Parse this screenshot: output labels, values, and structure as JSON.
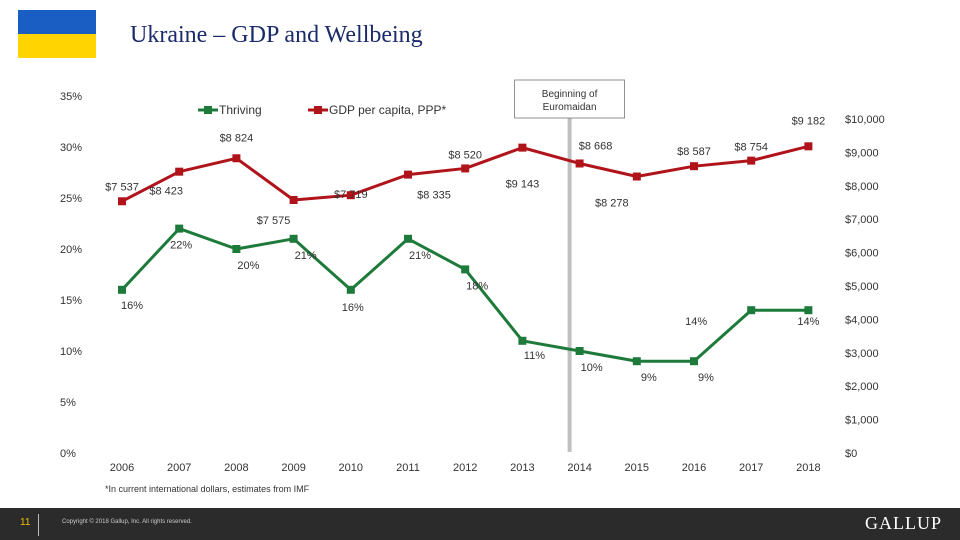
{
  "header": {
    "title": "Ukraine – GDP and Wellbeing",
    "flag": {
      "top_color": "#1a5ec4",
      "bottom_color": "#ffd400"
    }
  },
  "chart_data": {
    "type": "line",
    "x": [
      "2006",
      "2007",
      "2008",
      "2009",
      "2010",
      "2011",
      "2012",
      "2013",
      "2014",
      "2015",
      "2016",
      "2017",
      "2018"
    ],
    "series": [
      {
        "name": "Thriving",
        "axis": "left",
        "color": "#1e7a3a",
        "marker": "square",
        "values": [
          16,
          22,
          20,
          21,
          16,
          21,
          18,
          11,
          10,
          9,
          9,
          14,
          14
        ],
        "labels": [
          "16%",
          "22%",
          "20%",
          "21%",
          "16%",
          "21%",
          "18%",
          "11%",
          "10%",
          "9%",
          "9%",
          "14%",
          "14%"
        ]
      },
      {
        "name": "GDP per capita, PPP*",
        "axis": "right",
        "color": "#b0141a",
        "marker": "square",
        "values": [
          7537,
          8423,
          8824,
          7575,
          7719,
          8335,
          8520,
          9143,
          8668,
          8278,
          8587,
          8754,
          9182
        ],
        "labels": [
          "$7 537",
          "$8 423",
          "$8 824",
          "$7 575",
          "$7 719",
          "$8 335",
          "$8 520",
          "$9 143",
          "$8 668",
          "$8 278",
          "$8 587",
          "$8 754",
          "$9 182"
        ]
      }
    ],
    "y_left": {
      "range": [
        0,
        35
      ],
      "ticks": [
        "0%",
        "5%",
        "10%",
        "15%",
        "20%",
        "25%",
        "30%",
        "35%"
      ]
    },
    "y_right": {
      "range": [
        0,
        10500
      ],
      "ticks": [
        "$0",
        "$1,000",
        "$2,000",
        "$3,000",
        "$4,000",
        "$5,000",
        "$6,000",
        "$7,000",
        "$8,000",
        "$9,000",
        "$10,000"
      ]
    },
    "legend": {
      "placement": "top"
    },
    "grid": false,
    "annotation": {
      "text": "Beginning of Euromaidan",
      "at": "2014"
    },
    "footnote": "*In current international dollars, estimates from IMF"
  },
  "footer": {
    "page_number": "11",
    "copyright": "Copyright © 2018 Gallup, Inc. All rights reserved.",
    "brand": "GALLUP"
  }
}
